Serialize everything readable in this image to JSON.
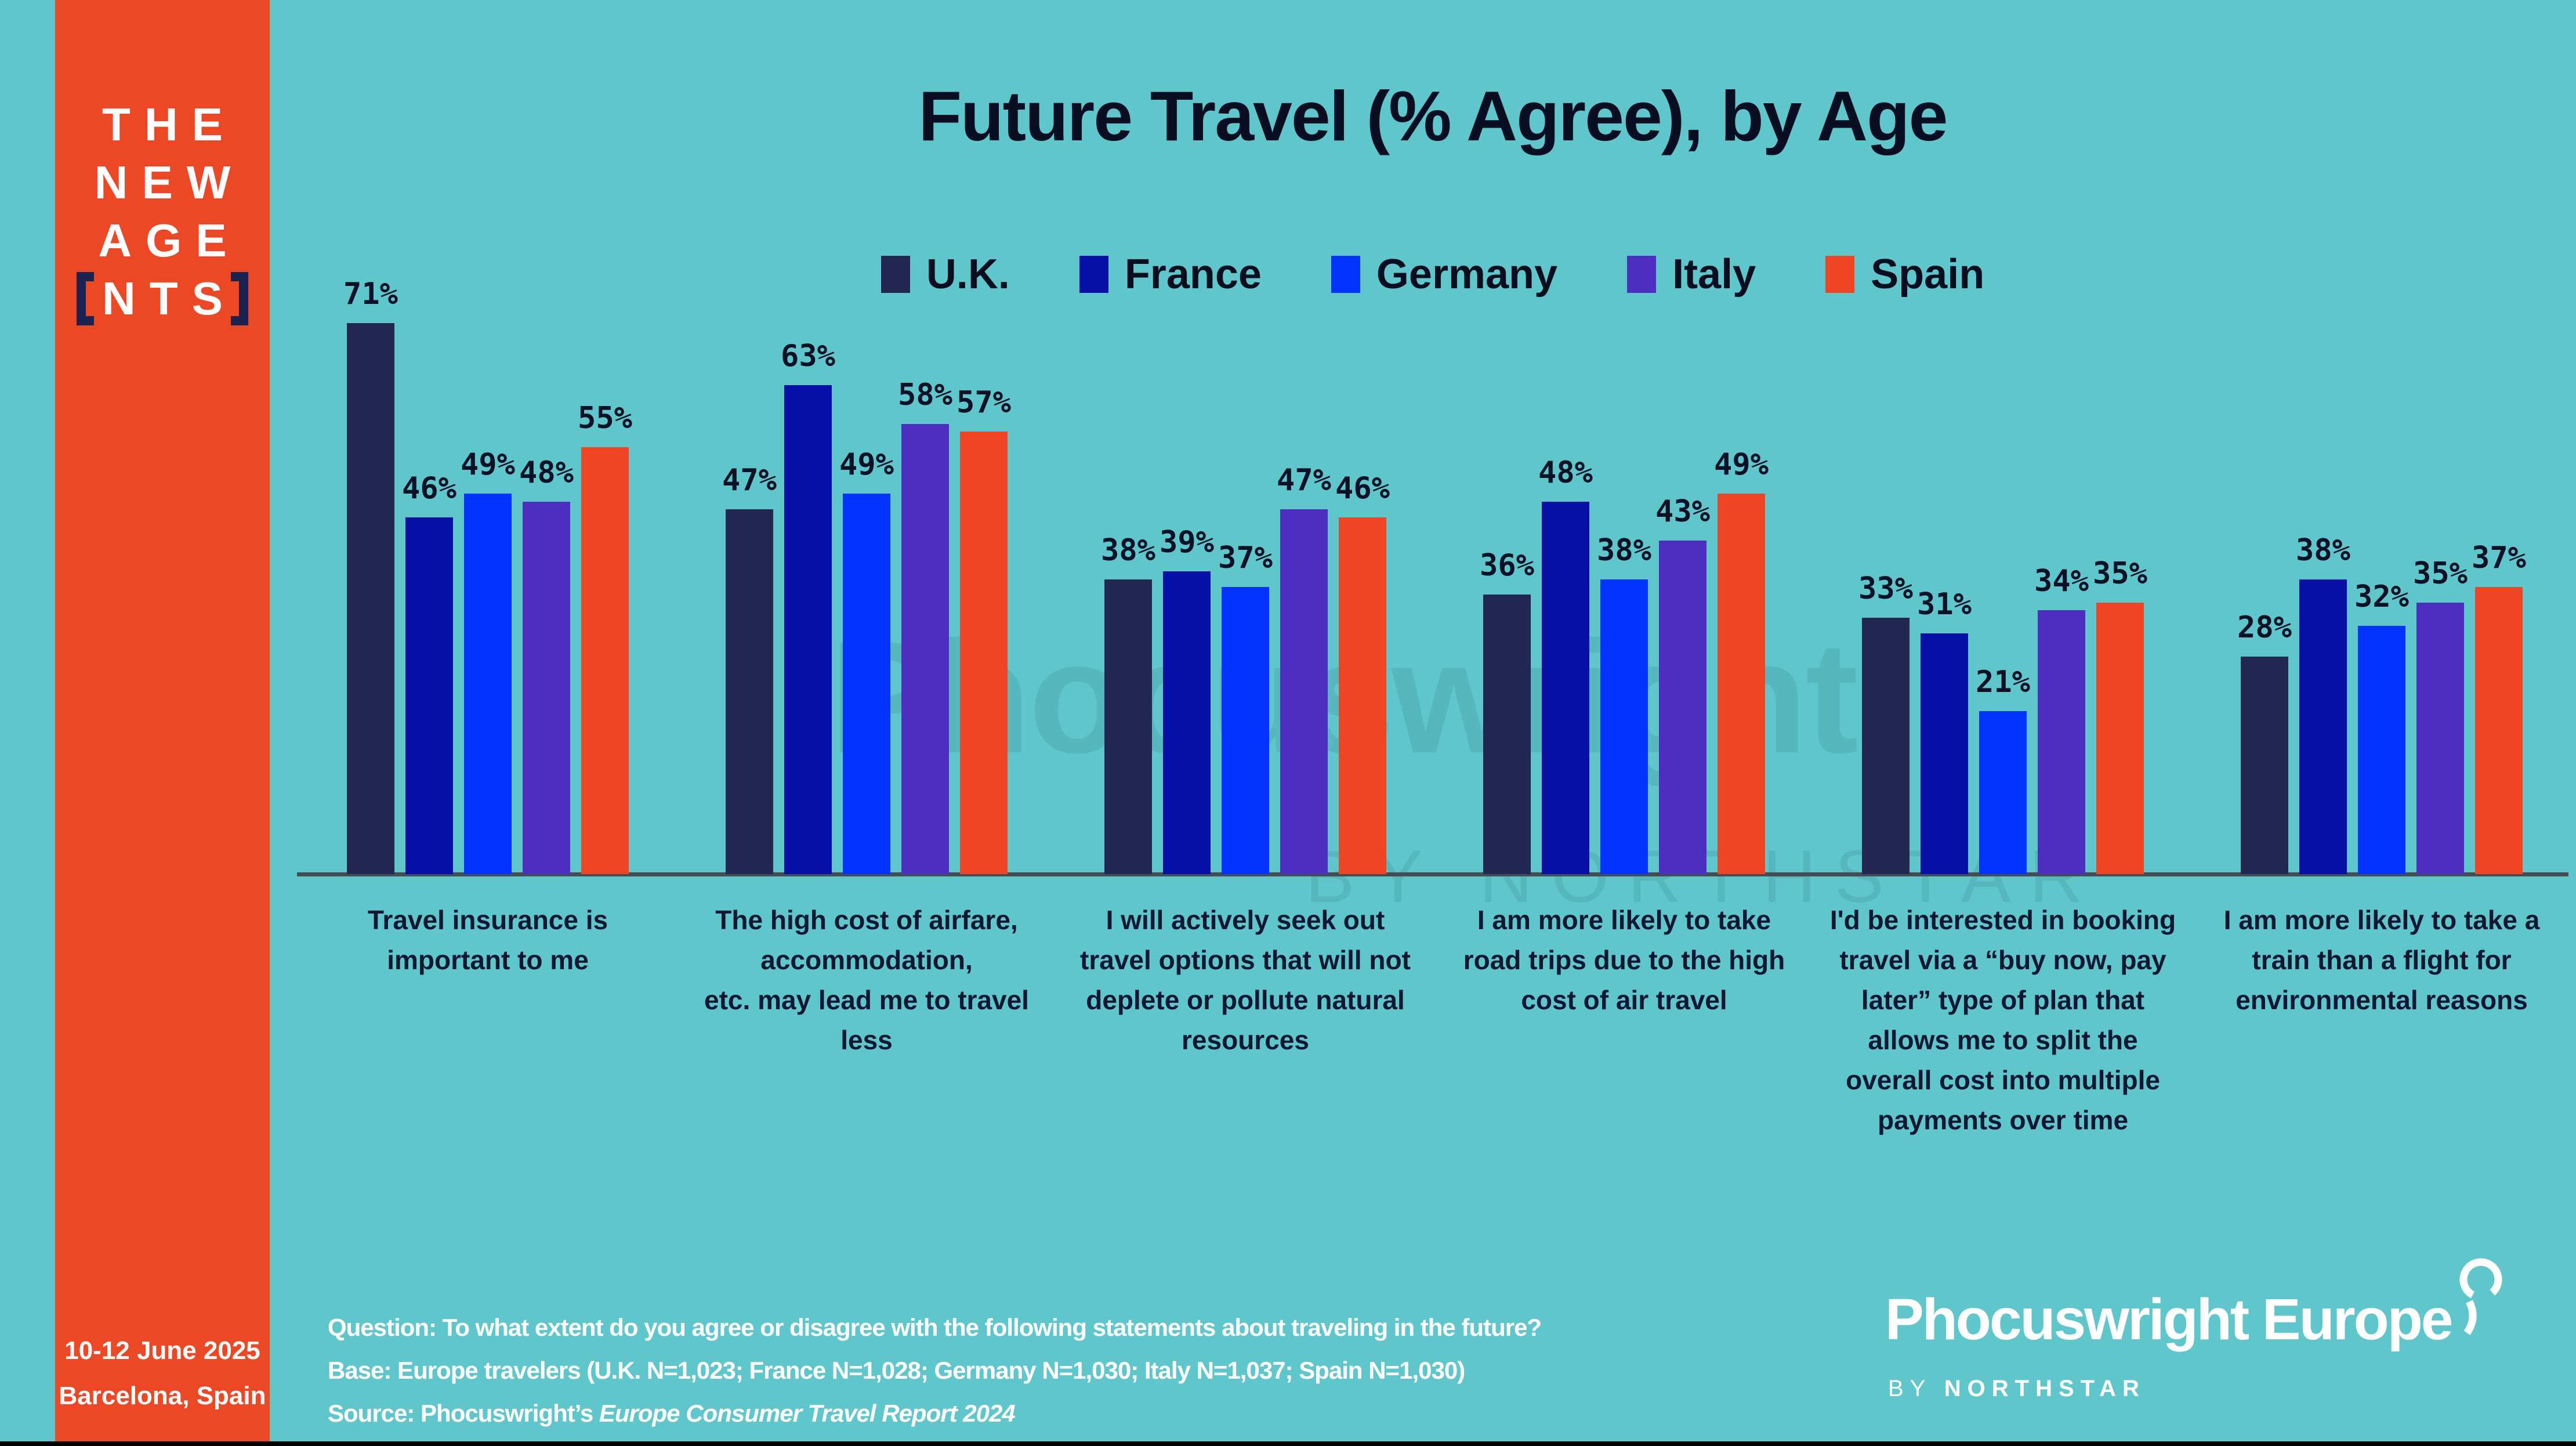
{
  "sidebar": {
    "logo_lines": [
      "THE",
      "NEW",
      "AGE",
      "NTS"
    ],
    "date_line1": "10-12 June 2025",
    "date_line2": "Barcelona, Spain"
  },
  "chart_data": {
    "type": "bar",
    "title": "Future Travel (% Agree), by Age",
    "value_suffix": "%",
    "ylim": [
      0,
      80
    ],
    "grid": false,
    "legend_position": "top",
    "categories": [
      [
        "Travel insurance is",
        "important to me"
      ],
      [
        "The high cost of airfare,",
        "accommodation,",
        "etc. may lead me to travel",
        "less"
      ],
      [
        "I will actively seek out",
        "travel options that will not",
        "deplete or pollute natural",
        "resources"
      ],
      [
        "I am more likely to take",
        "road trips due to the high",
        "cost of air travel"
      ],
      [
        "I'd be interested in booking",
        "travel via a “buy now, pay",
        "later” type of plan that",
        "allows me to split the",
        "overall cost into multiple",
        "payments over time"
      ],
      [
        "I am more likely to take a",
        "train than a flight for",
        "environmental reasons"
      ]
    ],
    "series": [
      {
        "name": "U.K.",
        "color": "#232852",
        "values": [
          71,
          47,
          38,
          36,
          33,
          28
        ]
      },
      {
        "name": "France",
        "color": "#060FA6",
        "values": [
          46,
          63,
          39,
          48,
          31,
          38
        ]
      },
      {
        "name": "Germany",
        "color": "#0233FF",
        "values": [
          49,
          49,
          37,
          38,
          21,
          32
        ]
      },
      {
        "name": "Italy",
        "color": "#4E2EC0",
        "values": [
          48,
          58,
          47,
          43,
          34,
          35
        ]
      },
      {
        "name": "Spain",
        "color": "#F04524",
        "values": [
          55,
          57,
          46,
          49,
          35,
          37
        ]
      }
    ]
  },
  "watermark": {
    "line1": "Phocuswright",
    "line2": "BY NORTHSTAR"
  },
  "footnote": {
    "question": "Question: To what extent do you agree or disagree with the following statements about traveling in the future?",
    "base": "Base: Europe travelers (U.K. N=1,023; France N=1,028; Germany N=1,030; Italy N=1,037; Spain N=1,030)",
    "source_prefix": "Source: Phocuswright’s ",
    "source_italic": "Europe Consumer Travel Report 2024"
  },
  "brand": {
    "logo_text": "Phocuswright Europe",
    "sub_prefix": "BY ",
    "sub_name": "NORTHSTAR"
  }
}
